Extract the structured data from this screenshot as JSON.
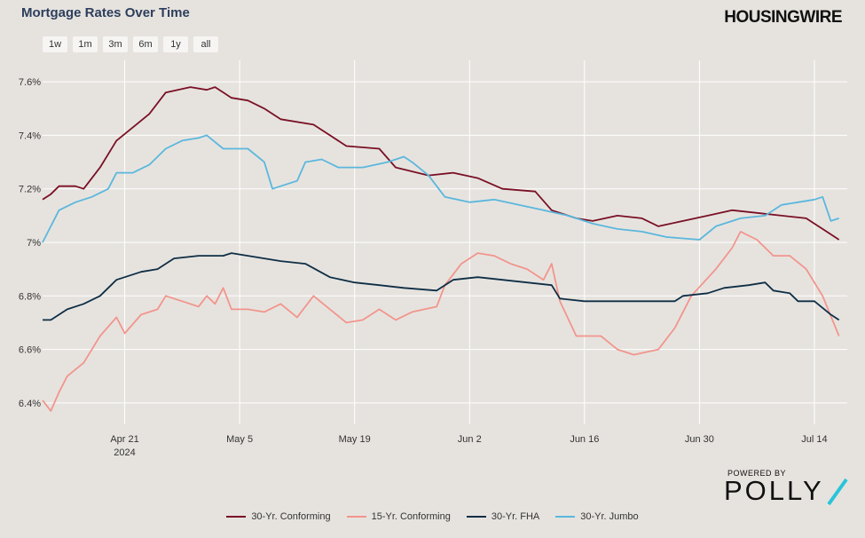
{
  "header": {
    "title": "Mortgage Rates Over Time",
    "brand": "HOUSINGWIRE"
  },
  "ranges": [
    "1w",
    "1m",
    "3m",
    "6m",
    "1y",
    "all"
  ],
  "footer": {
    "powered_by": "POWERED BY",
    "logo": "POLLY",
    "accent": "#29c4d9"
  },
  "chart_data": {
    "type": "line",
    "title": "Mortgage Rates Over Time",
    "ylim": [
      6.32,
      7.68
    ],
    "xlim": [
      "2024-04-11",
      "2024-07-18"
    ],
    "x_ticks": [
      {
        "date": "2024-04-21",
        "label": "Apr 21",
        "sublabel": "2024"
      },
      {
        "date": "2024-05-05",
        "label": "May 5"
      },
      {
        "date": "2024-05-19",
        "label": "May 19"
      },
      {
        "date": "2024-06-02",
        "label": "Jun 2"
      },
      {
        "date": "2024-06-16",
        "label": "Jun 16"
      },
      {
        "date": "2024-06-30",
        "label": "Jun 30"
      },
      {
        "date": "2024-07-14",
        "label": "Jul 14"
      }
    ],
    "y_ticks": [
      {
        "value": 6.4,
        "label": "6.4%"
      },
      {
        "value": 6.6,
        "label": "6.6%"
      },
      {
        "value": 6.8,
        "label": "6.8%"
      },
      {
        "value": 7.0,
        "label": "7%"
      },
      {
        "value": 7.2,
        "label": "7.2%"
      },
      {
        "value": 7.4,
        "label": "7.4%"
      },
      {
        "value": 7.6,
        "label": "7.6%"
      }
    ],
    "grid": true,
    "legend_position": "bottom",
    "series": [
      {
        "name": "30-Yr. Conforming",
        "color": "#7a1024",
        "points": [
          [
            "2024-04-11",
            7.16
          ],
          [
            "2024-04-12",
            7.18
          ],
          [
            "2024-04-13",
            7.21
          ],
          [
            "2024-04-15",
            7.21
          ],
          [
            "2024-04-16",
            7.2
          ],
          [
            "2024-04-18",
            7.28
          ],
          [
            "2024-04-20",
            7.38
          ],
          [
            "2024-04-22",
            7.43
          ],
          [
            "2024-04-24",
            7.48
          ],
          [
            "2024-04-26",
            7.56
          ],
          [
            "2024-04-29",
            7.58
          ],
          [
            "2024-05-01",
            7.57
          ],
          [
            "2024-05-02",
            7.58
          ],
          [
            "2024-05-04",
            7.54
          ],
          [
            "2024-05-06",
            7.53
          ],
          [
            "2024-05-08",
            7.5
          ],
          [
            "2024-05-10",
            7.46
          ],
          [
            "2024-05-14",
            7.44
          ],
          [
            "2024-05-16",
            7.4
          ],
          [
            "2024-05-18",
            7.36
          ],
          [
            "2024-05-22",
            7.35
          ],
          [
            "2024-05-24",
            7.28
          ],
          [
            "2024-05-28",
            7.25
          ],
          [
            "2024-05-31",
            7.26
          ],
          [
            "2024-06-03",
            7.24
          ],
          [
            "2024-06-06",
            7.2
          ],
          [
            "2024-06-10",
            7.19
          ],
          [
            "2024-06-12",
            7.12
          ],
          [
            "2024-06-15",
            7.09
          ],
          [
            "2024-06-17",
            7.08
          ],
          [
            "2024-06-20",
            7.1
          ],
          [
            "2024-06-23",
            7.09
          ],
          [
            "2024-06-25",
            7.06
          ],
          [
            "2024-06-28",
            7.08
          ],
          [
            "2024-07-01",
            7.1
          ],
          [
            "2024-07-04",
            7.12
          ],
          [
            "2024-07-07",
            7.11
          ],
          [
            "2024-07-10",
            7.1
          ],
          [
            "2024-07-13",
            7.09
          ],
          [
            "2024-07-15",
            7.05
          ],
          [
            "2024-07-17",
            7.01
          ]
        ]
      },
      {
        "name": "15-Yr. Conforming",
        "color": "#f2958c",
        "points": [
          [
            "2024-04-11",
            6.41
          ],
          [
            "2024-04-12",
            6.37
          ],
          [
            "2024-04-13",
            6.44
          ],
          [
            "2024-04-14",
            6.5
          ],
          [
            "2024-04-16",
            6.55
          ],
          [
            "2024-04-18",
            6.65
          ],
          [
            "2024-04-20",
            6.72
          ],
          [
            "2024-04-21",
            6.66
          ],
          [
            "2024-04-23",
            6.73
          ],
          [
            "2024-04-25",
            6.75
          ],
          [
            "2024-04-26",
            6.8
          ],
          [
            "2024-04-28",
            6.78
          ],
          [
            "2024-04-30",
            6.76
          ],
          [
            "2024-05-01",
            6.8
          ],
          [
            "2024-05-02",
            6.77
          ],
          [
            "2024-05-03",
            6.83
          ],
          [
            "2024-05-04",
            6.75
          ],
          [
            "2024-05-06",
            6.75
          ],
          [
            "2024-05-08",
            6.74
          ],
          [
            "2024-05-10",
            6.77
          ],
          [
            "2024-05-12",
            6.72
          ],
          [
            "2024-05-14",
            6.8
          ],
          [
            "2024-05-16",
            6.75
          ],
          [
            "2024-05-18",
            6.7
          ],
          [
            "2024-05-20",
            6.71
          ],
          [
            "2024-05-22",
            6.75
          ],
          [
            "2024-05-24",
            6.71
          ],
          [
            "2024-05-26",
            6.74
          ],
          [
            "2024-05-29",
            6.76
          ],
          [
            "2024-05-30",
            6.84
          ],
          [
            "2024-06-01",
            6.92
          ],
          [
            "2024-06-03",
            6.96
          ],
          [
            "2024-06-05",
            6.95
          ],
          [
            "2024-06-07",
            6.92
          ],
          [
            "2024-06-09",
            6.9
          ],
          [
            "2024-06-11",
            6.86
          ],
          [
            "2024-06-12",
            6.92
          ],
          [
            "2024-06-13",
            6.78
          ],
          [
            "2024-06-15",
            6.65
          ],
          [
            "2024-06-18",
            6.65
          ],
          [
            "2024-06-20",
            6.6
          ],
          [
            "2024-06-22",
            6.58
          ],
          [
            "2024-06-25",
            6.6
          ],
          [
            "2024-06-27",
            6.68
          ],
          [
            "2024-06-29",
            6.8
          ],
          [
            "2024-07-02",
            6.9
          ],
          [
            "2024-07-04",
            6.98
          ],
          [
            "2024-07-05",
            7.04
          ],
          [
            "2024-07-07",
            7.01
          ],
          [
            "2024-07-09",
            6.95
          ],
          [
            "2024-07-11",
            6.95
          ],
          [
            "2024-07-13",
            6.9
          ],
          [
            "2024-07-15",
            6.8
          ],
          [
            "2024-07-17",
            6.65
          ]
        ]
      },
      {
        "name": "30-Yr. FHA",
        "color": "#0f2e45",
        "points": [
          [
            "2024-04-11",
            6.71
          ],
          [
            "2024-04-12",
            6.71
          ],
          [
            "2024-04-14",
            6.75
          ],
          [
            "2024-04-16",
            6.77
          ],
          [
            "2024-04-18",
            6.8
          ],
          [
            "2024-04-20",
            6.86
          ],
          [
            "2024-04-23",
            6.89
          ],
          [
            "2024-04-25",
            6.9
          ],
          [
            "2024-04-27",
            6.94
          ],
          [
            "2024-04-30",
            6.95
          ],
          [
            "2024-05-03",
            6.95
          ],
          [
            "2024-05-04",
            6.96
          ],
          [
            "2024-05-06",
            6.95
          ],
          [
            "2024-05-10",
            6.93
          ],
          [
            "2024-05-13",
            6.92
          ],
          [
            "2024-05-16",
            6.87
          ],
          [
            "2024-05-19",
            6.85
          ],
          [
            "2024-05-22",
            6.84
          ],
          [
            "2024-05-25",
            6.83
          ],
          [
            "2024-05-29",
            6.82
          ],
          [
            "2024-05-31",
            6.86
          ],
          [
            "2024-06-03",
            6.87
          ],
          [
            "2024-06-06",
            6.86
          ],
          [
            "2024-06-09",
            6.85
          ],
          [
            "2024-06-12",
            6.84
          ],
          [
            "2024-06-13",
            6.79
          ],
          [
            "2024-06-16",
            6.78
          ],
          [
            "2024-06-20",
            6.78
          ],
          [
            "2024-06-24",
            6.78
          ],
          [
            "2024-06-27",
            6.78
          ],
          [
            "2024-06-28",
            6.8
          ],
          [
            "2024-07-01",
            6.81
          ],
          [
            "2024-07-03",
            6.83
          ],
          [
            "2024-07-06",
            6.84
          ],
          [
            "2024-07-08",
            6.85
          ],
          [
            "2024-07-09",
            6.82
          ],
          [
            "2024-07-11",
            6.81
          ],
          [
            "2024-07-12",
            6.78
          ],
          [
            "2024-07-14",
            6.78
          ],
          [
            "2024-07-16",
            6.73
          ],
          [
            "2024-07-17",
            6.71
          ]
        ]
      },
      {
        "name": "30-Yr. Jumbo",
        "color": "#5bb7dd",
        "points": [
          [
            "2024-04-11",
            7.0
          ],
          [
            "2024-04-12",
            7.06
          ],
          [
            "2024-04-13",
            7.12
          ],
          [
            "2024-04-15",
            7.15
          ],
          [
            "2024-04-17",
            7.17
          ],
          [
            "2024-04-19",
            7.2
          ],
          [
            "2024-04-20",
            7.26
          ],
          [
            "2024-04-22",
            7.26
          ],
          [
            "2024-04-24",
            7.29
          ],
          [
            "2024-04-26",
            7.35
          ],
          [
            "2024-04-28",
            7.38
          ],
          [
            "2024-04-30",
            7.39
          ],
          [
            "2024-05-01",
            7.4
          ],
          [
            "2024-05-03",
            7.35
          ],
          [
            "2024-05-06",
            7.35
          ],
          [
            "2024-05-08",
            7.3
          ],
          [
            "2024-05-09",
            7.2
          ],
          [
            "2024-05-12",
            7.23
          ],
          [
            "2024-05-13",
            7.3
          ],
          [
            "2024-05-15",
            7.31
          ],
          [
            "2024-05-17",
            7.28
          ],
          [
            "2024-05-20",
            7.28
          ],
          [
            "2024-05-23",
            7.3
          ],
          [
            "2024-05-25",
            7.32
          ],
          [
            "2024-05-26",
            7.3
          ],
          [
            "2024-05-28",
            7.25
          ],
          [
            "2024-05-30",
            7.17
          ],
          [
            "2024-06-02",
            7.15
          ],
          [
            "2024-06-05",
            7.16
          ],
          [
            "2024-06-08",
            7.14
          ],
          [
            "2024-06-11",
            7.12
          ],
          [
            "2024-06-14",
            7.1
          ],
          [
            "2024-06-17",
            7.07
          ],
          [
            "2024-06-20",
            7.05
          ],
          [
            "2024-06-23",
            7.04
          ],
          [
            "2024-06-26",
            7.02
          ],
          [
            "2024-06-30",
            7.01
          ],
          [
            "2024-07-02",
            7.06
          ],
          [
            "2024-07-05",
            7.09
          ],
          [
            "2024-07-08",
            7.1
          ],
          [
            "2024-07-10",
            7.14
          ],
          [
            "2024-07-12",
            7.15
          ],
          [
            "2024-07-14",
            7.16
          ],
          [
            "2024-07-15",
            7.17
          ],
          [
            "2024-07-16",
            7.08
          ],
          [
            "2024-07-17",
            7.09
          ]
        ]
      }
    ]
  }
}
